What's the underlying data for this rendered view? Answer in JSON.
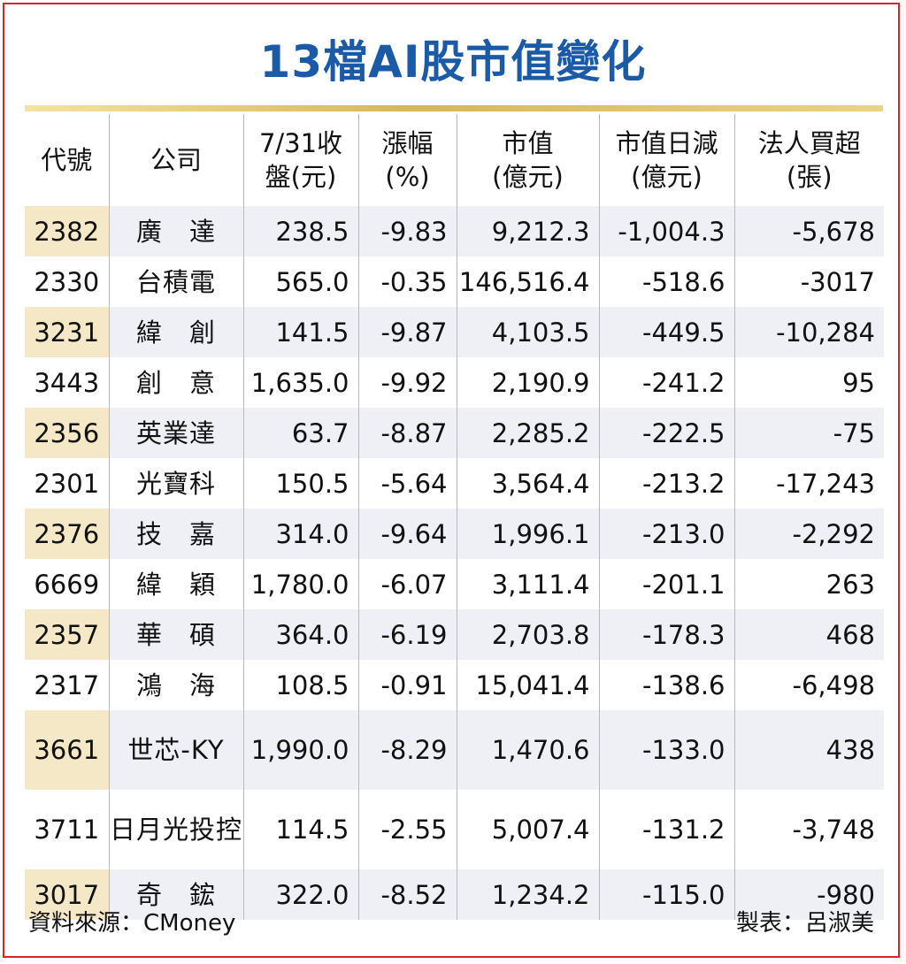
{
  "chart_data": {
    "type": "table",
    "title": "13檔AI股市值變化",
    "columns": [
      [
        "代號"
      ],
      [
        "公司"
      ],
      [
        "7/31收",
        "盤(元)"
      ],
      [
        "漲幅",
        "(%)"
      ],
      [
        "市值",
        "(億元)"
      ],
      [
        "市值日減",
        "(億元)"
      ],
      [
        "法人買超",
        "(張)"
      ]
    ],
    "rows": [
      {
        "code": "2382",
        "name": "廣　達",
        "close": "238.5",
        "change": "-9.83",
        "cap": "9,212.3",
        "drop": "-1,004.3",
        "net": "-5,678"
      },
      {
        "code": "2330",
        "name": "台積電",
        "close": "565.0",
        "change": "-0.35",
        "cap": "146,516.4",
        "drop": "-518.6",
        "net": "-3017"
      },
      {
        "code": "3231",
        "name": "緯　創",
        "close": "141.5",
        "change": "-9.87",
        "cap": "4,103.5",
        "drop": "-449.5",
        "net": "-10,284"
      },
      {
        "code": "3443",
        "name": "創　意",
        "close": "1,635.0",
        "change": "-9.92",
        "cap": "2,190.9",
        "drop": "-241.2",
        "net": "95"
      },
      {
        "code": "2356",
        "name": "英業達",
        "close": "63.7",
        "change": "-8.87",
        "cap": "2,285.2",
        "drop": "-222.5",
        "net": "-75"
      },
      {
        "code": "2301",
        "name": "光寶科",
        "close": "150.5",
        "change": "-5.64",
        "cap": "3,564.4",
        "drop": "-213.2",
        "net": "-17,243"
      },
      {
        "code": "2376",
        "name": "技　嘉",
        "close": "314.0",
        "change": "-9.64",
        "cap": "1,996.1",
        "drop": "-213.0",
        "net": "-2,292"
      },
      {
        "code": "6669",
        "name": "緯　穎",
        "close": "1,780.0",
        "change": "-6.07",
        "cap": "3,111.4",
        "drop": "-201.1",
        "net": "263"
      },
      {
        "code": "2357",
        "name": "華　碩",
        "close": "364.0",
        "change": "-6.19",
        "cap": "2,703.8",
        "drop": "-178.3",
        "net": "468"
      },
      {
        "code": "2317",
        "name": "鴻　海",
        "close": "108.5",
        "change": "-0.91",
        "cap": "15,041.4",
        "drop": "-138.6",
        "net": "-6,498"
      },
      {
        "code": "3661",
        "name": "世芯-KY",
        "close": "1,990.0",
        "change": "-8.29",
        "cap": "1,470.6",
        "drop": "-133.0",
        "net": "438"
      },
      {
        "code": "3711",
        "name": "日月光投控",
        "close": "114.5",
        "change": "-2.55",
        "cap": "5,007.4",
        "drop": "-131.2",
        "net": "-3,748"
      },
      {
        "code": "3017",
        "name": "奇　鋐",
        "close": "322.0",
        "change": "-8.52",
        "cap": "1,234.2",
        "drop": "-115.0",
        "net": "-980"
      }
    ]
  },
  "footer": {
    "source": "資料來源：CMoney",
    "author": "製表：呂淑美"
  },
  "colors": {
    "title": "#1b5aa6",
    "frame": "#d9252a",
    "code_highlight": "#f5e8c6",
    "row_shade": "#eef0f5",
    "gold_rule": "#d8b758"
  }
}
